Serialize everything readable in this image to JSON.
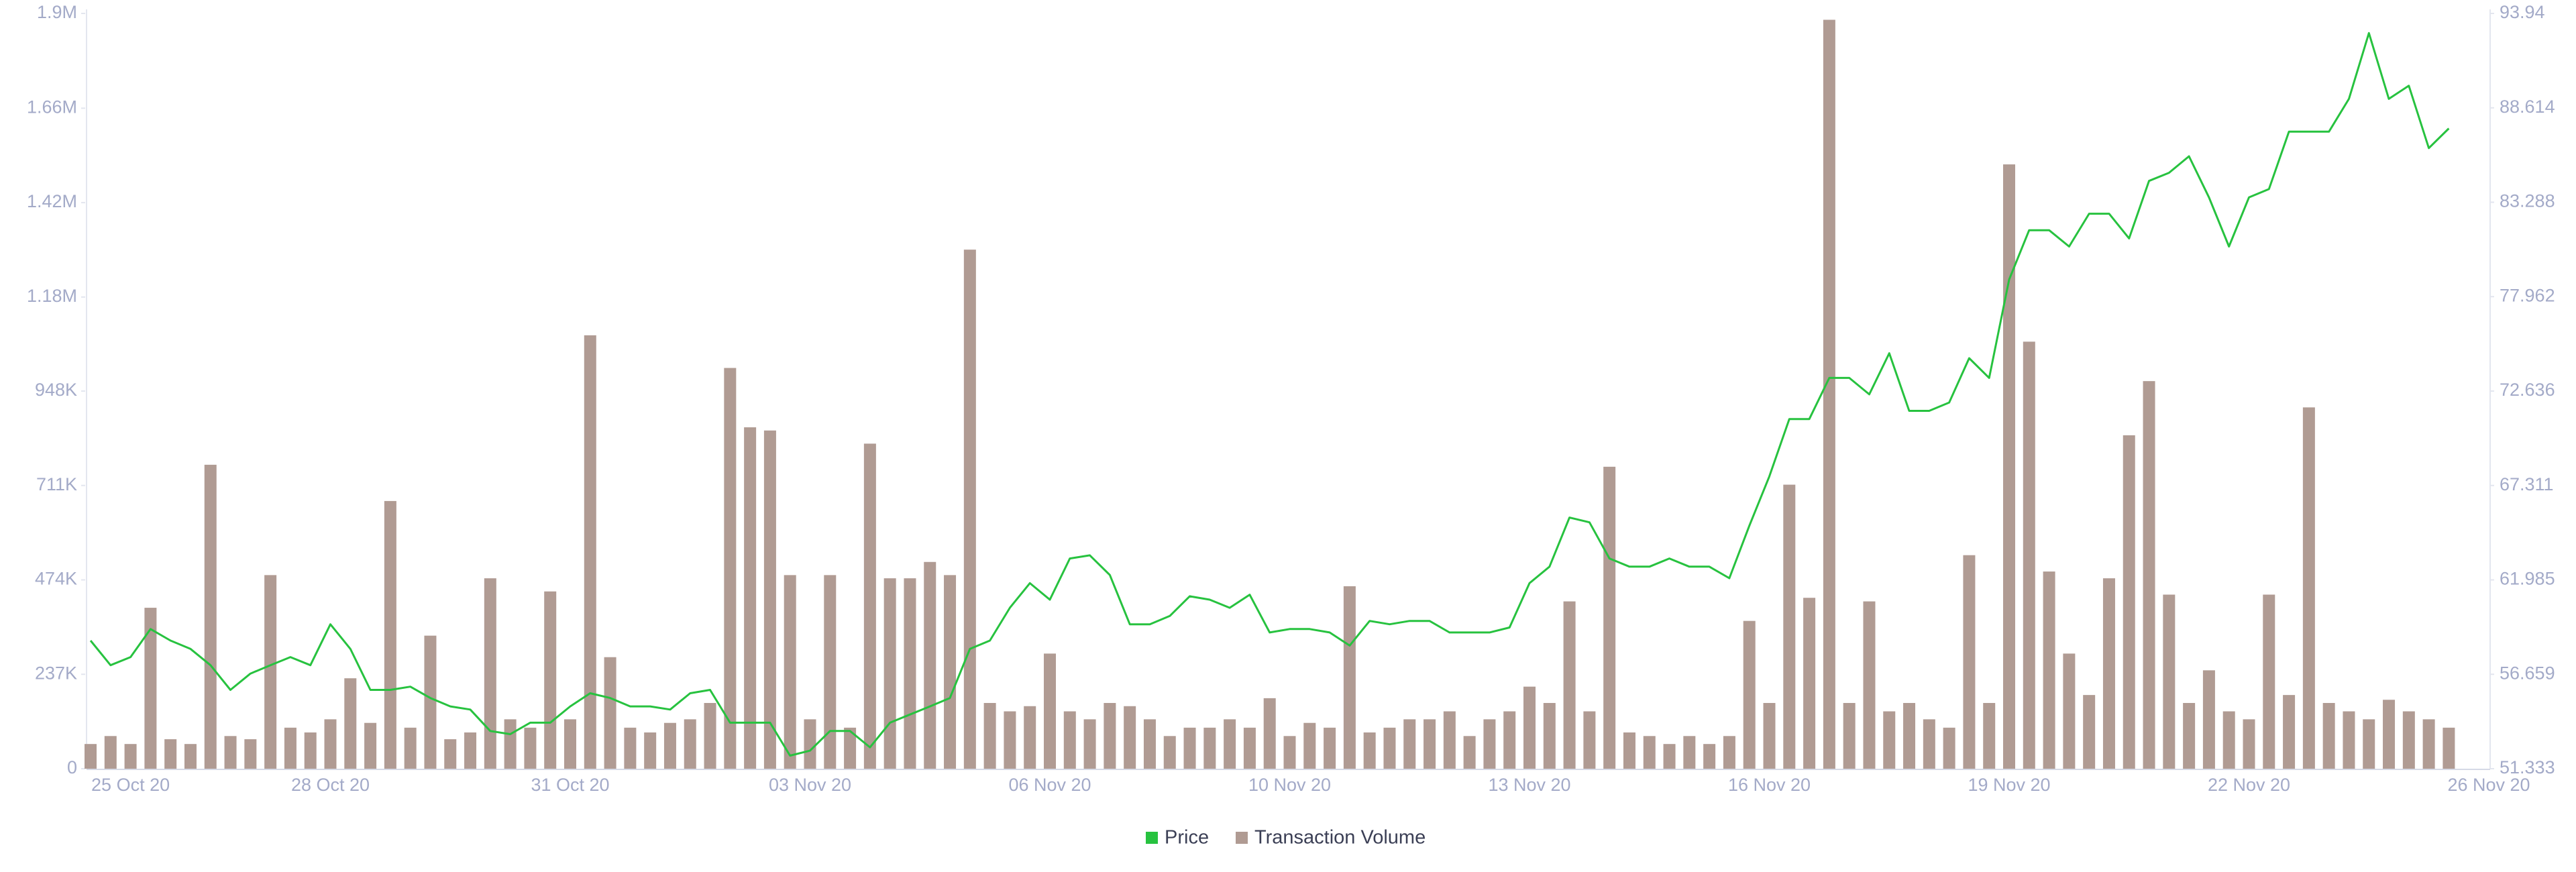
{
  "chart_data": {
    "type": "combo",
    "categories": [
      null,
      null,
      "25 Oct 20",
      null,
      null,
      null,
      null,
      null,
      null,
      null,
      null,
      null,
      "28 Oct 20",
      null,
      null,
      null,
      null,
      null,
      null,
      null,
      null,
      null,
      null,
      null,
      "31 Oct 20",
      null,
      null,
      null,
      null,
      null,
      null,
      null,
      null,
      null,
      null,
      null,
      "03 Nov 20",
      null,
      null,
      null,
      null,
      null,
      null,
      null,
      null,
      null,
      null,
      null,
      "06 Nov 20",
      null,
      null,
      null,
      null,
      null,
      null,
      null,
      null,
      null,
      null,
      null,
      "10 Nov 20",
      null,
      null,
      null,
      null,
      null,
      null,
      null,
      null,
      null,
      null,
      null,
      "13 Nov 20",
      null,
      null,
      null,
      null,
      null,
      null,
      null,
      null,
      null,
      null,
      null,
      "16 Nov 20",
      null,
      null,
      null,
      null,
      null,
      null,
      null,
      null,
      null,
      null,
      null,
      "19 Nov 20",
      null,
      null,
      null,
      null,
      null,
      null,
      null,
      null,
      null,
      null,
      null,
      "22 Nov 20",
      null,
      null,
      null,
      null,
      null,
      null,
      null,
      null,
      null,
      null,
      null,
      "26 Nov 20"
    ],
    "series": [
      {
        "name": "Price",
        "type": "line",
        "axis": "y2",
        "color": "#27c23f",
        "values": [
          58.56,
          57.17,
          57.63,
          59.21,
          58.56,
          58.09,
          57.17,
          55.78,
          56.7,
          57.17,
          57.63,
          57.17,
          59.48,
          58.09,
          55.78,
          55.78,
          55.96,
          55.32,
          54.85,
          54.67,
          53.46,
          53.28,
          53.93,
          53.93,
          54.85,
          55.59,
          55.32,
          54.85,
          54.85,
          54.67,
          55.59,
          55.78,
          53.93,
          53.93,
          53.93,
          52.07,
          52.35,
          53.46,
          53.46,
          52.54,
          53.93,
          54.39,
          54.85,
          55.32,
          58.09,
          58.56,
          60.41,
          61.8,
          60.87,
          63.19,
          63.37,
          62.26,
          59.48,
          59.48,
          59.95,
          61.06,
          60.87,
          60.41,
          61.15,
          59.02,
          59.21,
          59.21,
          59.02,
          58.28,
          59.67,
          59.48,
          59.67,
          59.67,
          59.02,
          59.02,
          59.02,
          59.3,
          61.8,
          62.73,
          65.5,
          65.23,
          63.19,
          62.73,
          62.73,
          63.19,
          62.73,
          62.73,
          62.08,
          65.04,
          67.82,
          71.06,
          71.06,
          73.38,
          73.38,
          72.45,
          74.77,
          71.52,
          71.52,
          71.99,
          74.49,
          73.38,
          78.93,
          81.71,
          81.71,
          80.79,
          82.64,
          82.64,
          81.25,
          84.49,
          84.95,
          85.88,
          83.56,
          80.79,
          83.56,
          84.03,
          87.27,
          87.27,
          87.27,
          89.12,
          92.83,
          89.12,
          89.86,
          86.34,
          87.45,
          null,
          null
        ]
      },
      {
        "name": "Transaction Volume",
        "type": "bar",
        "color": "#b09b93",
        "values": [
          62000,
          82000,
          62000,
          404000,
          74000,
          62000,
          763000,
          82000,
          74000,
          486000,
          103000,
          91000,
          124000,
          227000,
          115000,
          672000,
          103000,
          334000,
          74000,
          91000,
          478000,
          124000,
          103000,
          445000,
          124000,
          1088000,
          280000,
          103000,
          91000,
          115000,
          124000,
          165000,
          1006000,
          857000,
          849000,
          486000,
          124000,
          486000,
          103000,
          816000,
          478000,
          478000,
          519000,
          486000,
          1303000,
          165000,
          144000,
          157000,
          289000,
          144000,
          124000,
          165000,
          157000,
          124000,
          82000,
          103000,
          103000,
          124000,
          103000,
          177000,
          82000,
          115000,
          103000,
          458000,
          91000,
          103000,
          124000,
          124000,
          144000,
          82000,
          124000,
          144000,
          206000,
          165000,
          420000,
          144000,
          758000,
          91000,
          82000,
          62000,
          82000,
          62000,
          82000,
          371000,
          165000,
          713000,
          429000,
          1880000,
          165000,
          420000,
          144000,
          165000,
          124000,
          103000,
          536000,
          165000,
          1517000,
          1072000,
          495000,
          289000,
          185000,
          478000,
          837000,
          973000,
          437000,
          165000,
          247000,
          144000,
          124000,
          437000,
          185000,
          907000,
          165000,
          144000,
          124000,
          173000,
          144000,
          124000,
          103000,
          null,
          null
        ]
      }
    ],
    "ylim": [
      0,
      1896000
    ],
    "yticks": [
      0,
      {
        "value": 237000,
        "label": "237K"
      },
      {
        "value": 474000,
        "label": "474K"
      },
      {
        "value": 711000,
        "label": "711K"
      },
      {
        "value": 948000,
        "label": "948K"
      },
      {
        "value": 1184000,
        "label": "1.18M"
      },
      {
        "value": 1421000,
        "label": "1.42M"
      },
      {
        "value": 1658000,
        "label": "1.66M"
      },
      {
        "value": 1896000,
        "label": "1.9M"
      }
    ],
    "y2lim": [
      51.333,
      93.94
    ],
    "y2ticks": [
      51.333,
      56.659,
      61.985,
      67.311,
      72.636,
      77.962,
      83.288,
      88.614,
      93.94
    ],
    "grid": false
  }
}
